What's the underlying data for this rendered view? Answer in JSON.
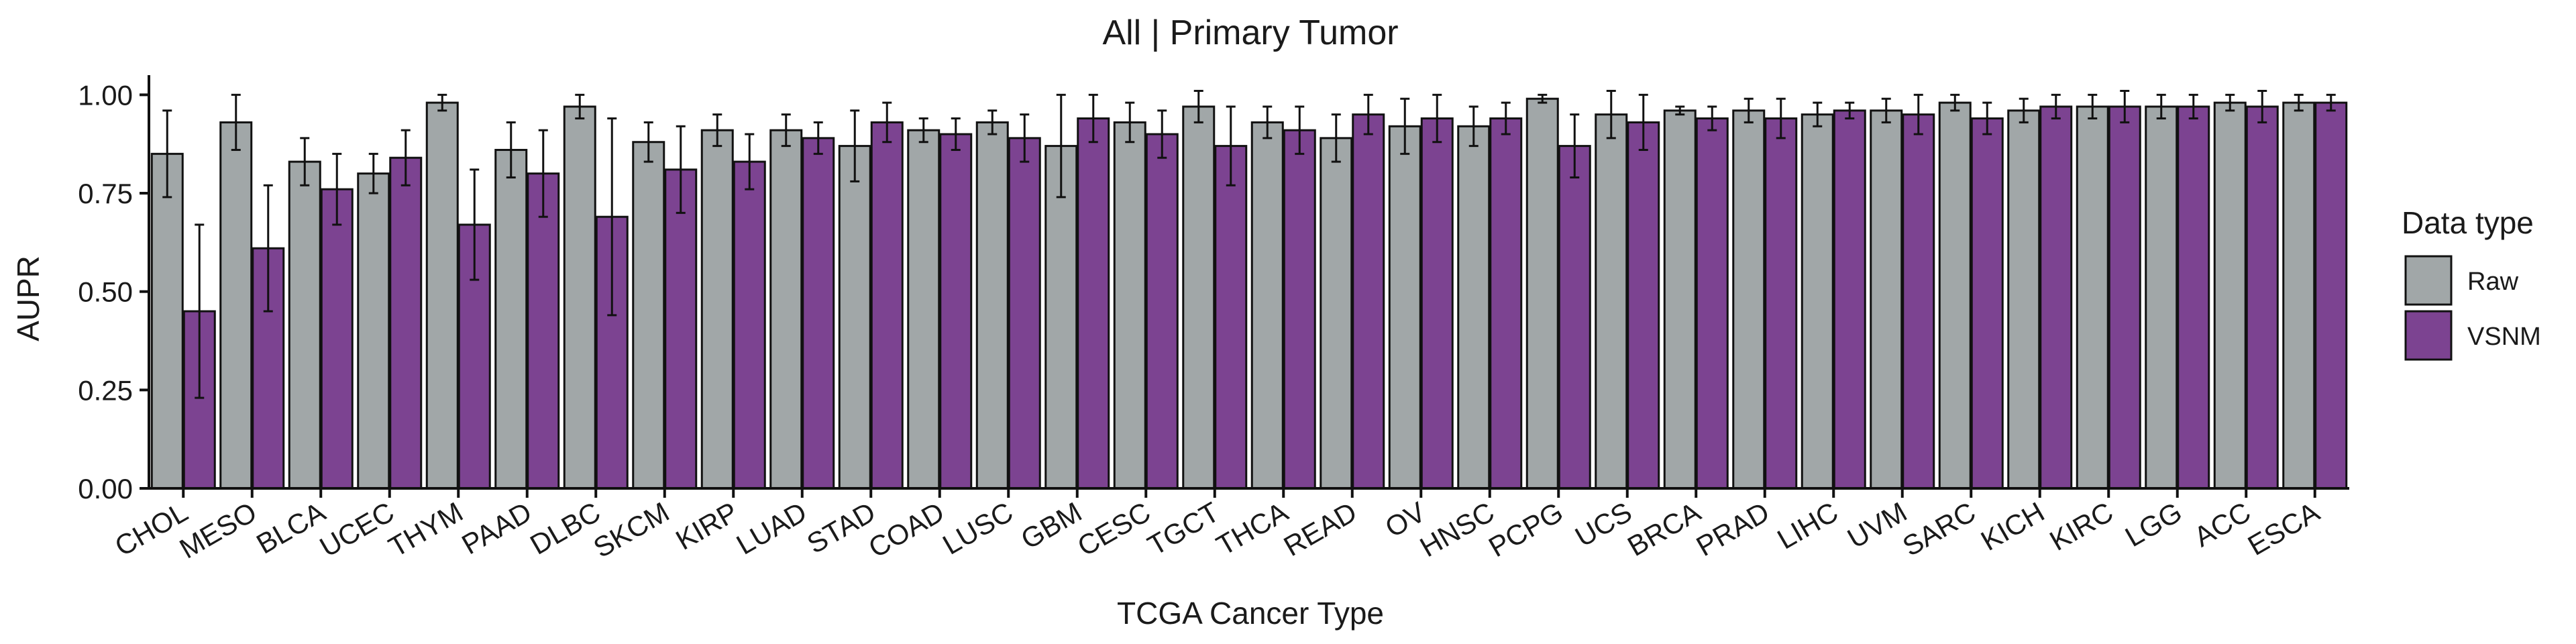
{
  "chart_data": {
    "type": "bar",
    "title": "All | Primary Tumor",
    "xlabel": "TCGA Cancer Type",
    "ylabel": "AUPR",
    "ylim": [
      0,
      1.05
    ],
    "yticks": [
      "0.00",
      "0.25",
      "0.50",
      "0.75",
      "1.00"
    ],
    "ytick_values": [
      0,
      0.25,
      0.5,
      0.75,
      1.0
    ],
    "grid": false,
    "legend_position": "right",
    "legend_title": "Data type",
    "categories": [
      "CHOL",
      "MESO",
      "BLCA",
      "UCEC",
      "THYM",
      "PAAD",
      "DLBC",
      "SKCM",
      "KIRP",
      "LUAD",
      "STAD",
      "COAD",
      "LUSC",
      "GBM",
      "CESC",
      "TGCT",
      "THCA",
      "READ",
      "OV",
      "HNSC",
      "PCPG",
      "UCS",
      "BRCA",
      "PRAD",
      "LIHC",
      "UVM",
      "SARC",
      "KICH",
      "KIRC",
      "LGG",
      "ACC",
      "ESCA"
    ],
    "series": [
      {
        "name": "Raw",
        "color": "#A1A7A8",
        "values": [
          0.85,
          0.93,
          0.83,
          0.8,
          0.98,
          0.86,
          0.97,
          0.88,
          0.91,
          0.91,
          0.87,
          0.91,
          0.93,
          0.87,
          0.93,
          0.97,
          0.93,
          0.89,
          0.92,
          0.92,
          0.99,
          0.95,
          0.96,
          0.96,
          0.95,
          0.96,
          0.98,
          0.96,
          0.97,
          0.97,
          0.98,
          0.98
        ],
        "error": [
          0.11,
          0.07,
          0.06,
          0.05,
          0.02,
          0.07,
          0.03,
          0.05,
          0.04,
          0.04,
          0.09,
          0.03,
          0.03,
          0.13,
          0.05,
          0.04,
          0.04,
          0.06,
          0.07,
          0.05,
          0.01,
          0.06,
          0.01,
          0.03,
          0.03,
          0.03,
          0.02,
          0.03,
          0.03,
          0.03,
          0.02,
          0.02
        ]
      },
      {
        "name": "VSNM",
        "color": "#7C4391",
        "values": [
          0.45,
          0.61,
          0.76,
          0.84,
          0.67,
          0.8,
          0.69,
          0.81,
          0.83,
          0.89,
          0.93,
          0.9,
          0.89,
          0.94,
          0.9,
          0.87,
          0.91,
          0.95,
          0.94,
          0.94,
          0.87,
          0.93,
          0.94,
          0.94,
          0.96,
          0.95,
          0.94,
          0.97,
          0.97,
          0.97,
          0.97,
          0.98
        ],
        "error": [
          0.22,
          0.16,
          0.09,
          0.07,
          0.14,
          0.11,
          0.25,
          0.11,
          0.07,
          0.04,
          0.05,
          0.04,
          0.06,
          0.06,
          0.06,
          0.1,
          0.06,
          0.05,
          0.06,
          0.04,
          0.08,
          0.07,
          0.03,
          0.05,
          0.02,
          0.05,
          0.04,
          0.03,
          0.04,
          0.03,
          0.04,
          0.02
        ]
      }
    ]
  }
}
